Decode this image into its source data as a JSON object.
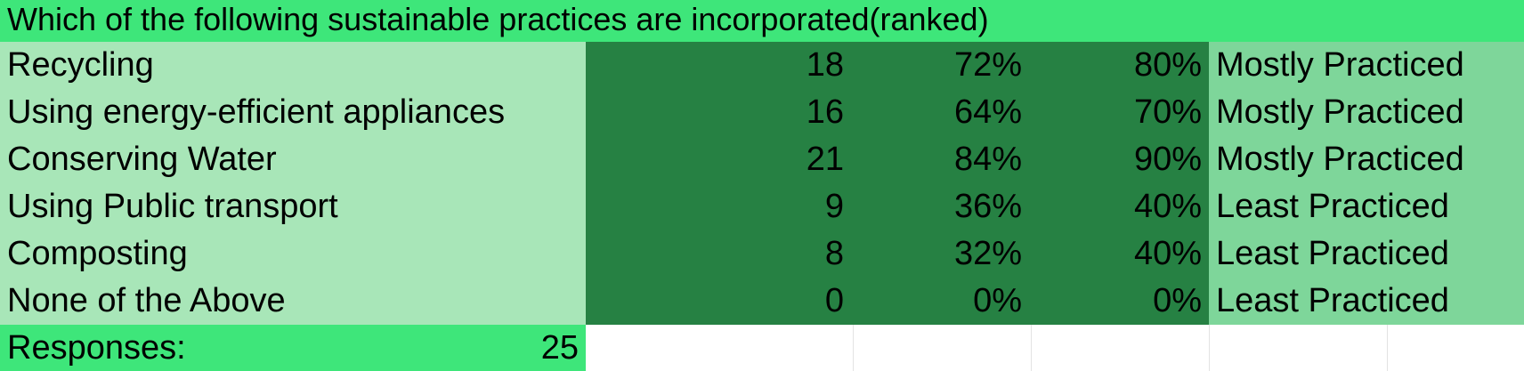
{
  "title": "Which of the following sustainable practices are incorporated(ranked)",
  "rows": [
    {
      "label": "Recycling",
      "count": "18",
      "percent": "72%",
      "rounded": "80%",
      "status": "Mostly Practiced"
    },
    {
      "label": "Using energy-efficient appliances",
      "count": "16",
      "percent": "64%",
      "rounded": "70%",
      "status": "Mostly Practiced"
    },
    {
      "label": "Conserving Water",
      "count": "21",
      "percent": "84%",
      "rounded": "90%",
      "status": "Mostly Practiced"
    },
    {
      "label": "Using Public transport",
      "count": "9",
      "percent": "36%",
      "rounded": "40%",
      "status": "Least Practiced"
    },
    {
      "label": "Composting",
      "count": "8",
      "percent": "32%",
      "rounded": "40%",
      "status": "Least Practiced"
    },
    {
      "label": "None of the Above",
      "count": "0",
      "percent": "0%",
      "rounded": "0%",
      "status": "Least Practiced"
    }
  ],
  "footer": {
    "label": "Responses:",
    "value": "25"
  },
  "colors": {
    "header": "#3ee67a",
    "label_fill": "#a8e6b8",
    "number_fill": "#268143",
    "status_fill": "#7ed69a"
  }
}
